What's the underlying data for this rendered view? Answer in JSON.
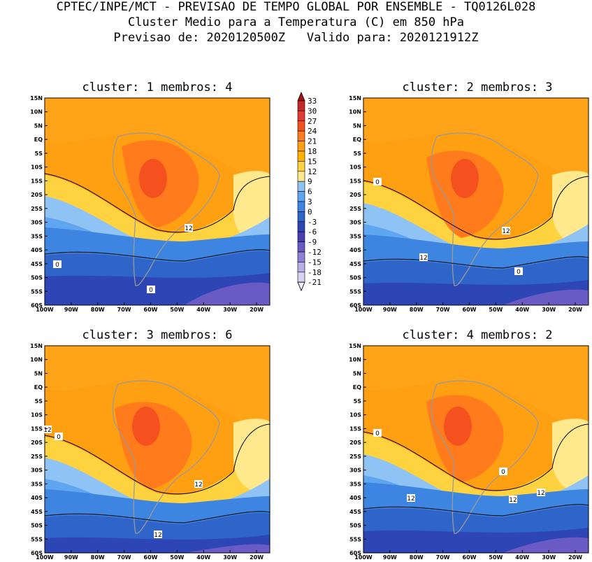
{
  "header": {
    "line1": "CPTEC/INPE/MCT - PREVISAO DE TEMPO GLOBAL POR ENSEMBLE - TQ0126L028",
    "line2": "Cluster Medio para a Temperatura (C) em 850 hPa",
    "line3": "Previsao de: 2020120500Z   Valido para: 2020121912Z"
  },
  "panels": [
    {
      "title": "cluster: 1  membros: 4",
      "contour_labels": [
        "12",
        "0",
        "0"
      ]
    },
    {
      "title": "cluster: 2  membros: 3",
      "contour_labels": [
        "12",
        "12",
        "0",
        "0"
      ]
    },
    {
      "title": "cluster: 3  membros: 6",
      "contour_labels": [
        "12",
        "12",
        "12",
        "0"
      ]
    },
    {
      "title": "cluster: 4  membros: 2",
      "contour_labels": [
        "12",
        "12",
        "12",
        "0",
        "0"
      ]
    }
  ],
  "lat_labels": [
    "15N",
    "10N",
    "5N",
    "EQ",
    "5S",
    "10S",
    "15S",
    "20S",
    "25S",
    "30S",
    "35S",
    "40S",
    "45S",
    "50S",
    "55S",
    "60S"
  ],
  "lon_labels": [
    "100W",
    "90W",
    "80W",
    "70W",
    "60W",
    "50W",
    "40W",
    "30W",
    "20W"
  ],
  "colorbar": {
    "labels": [
      "33",
      "30",
      "27",
      "24",
      "21",
      "18",
      "15",
      "12",
      "9",
      "6",
      "3",
      "0",
      "-3",
      "-6",
      "-9",
      "-12",
      "-15",
      "-18",
      "-21"
    ],
    "colors": [
      "#a50f15",
      "#c62828",
      "#e53935",
      "#f4511e",
      "#ff7b1c",
      "#ff9f12",
      "#ffb300",
      "#ffd23f",
      "#ffe98c",
      "#8fc3f5",
      "#60a5f0",
      "#3d85e0",
      "#2f64c9",
      "#2e46b5",
      "#4a3fb0",
      "#6a5bc4",
      "#8f82d6",
      "#b7aee6",
      "#d9d2f2",
      "#efebfa"
    ]
  }
}
